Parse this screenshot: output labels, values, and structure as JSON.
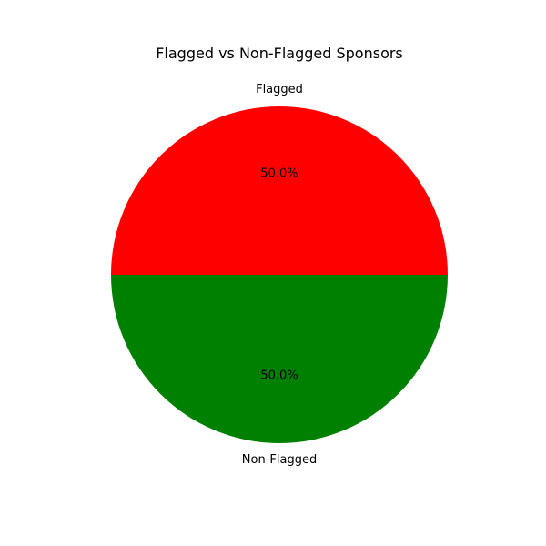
{
  "chart_data": {
    "type": "pie",
    "title": "Flagged vs Non-Flagged Sponsors",
    "slices": [
      {
        "label": "Flagged",
        "value": 50.0,
        "percent_label": "50.0%",
        "color": "#ff0000"
      },
      {
        "label": "Non-Flagged",
        "value": 50.0,
        "percent_label": "50.0%",
        "color": "#008000"
      }
    ],
    "start_angle_deg": 0,
    "direction": "counterclockwise",
    "legend": "none"
  }
}
